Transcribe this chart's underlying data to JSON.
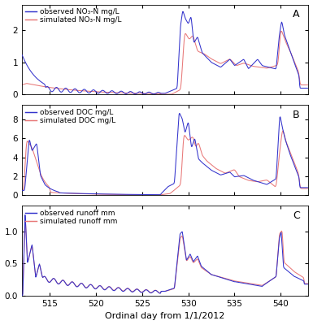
{
  "xlim": [
    512,
    543
  ],
  "panel_A": {
    "ylim": [
      0,
      2.8
    ],
    "yticks": [
      0,
      1,
      2
    ],
    "label": "A",
    "obs_legend": "observed NO₃-N mg/L",
    "sim_legend": "simulated NO₃-N mg/L"
  },
  "panel_B": {
    "ylim": [
      0,
      9.5
    ],
    "yticks": [
      0,
      2,
      4,
      6,
      8
    ],
    "label": "B",
    "obs_legend": "observed DOC mg/L",
    "sim_legend": "simulated DOC mg/L"
  },
  "panel_C": {
    "ylim": [
      0,
      1.4
    ],
    "yticks": [
      0,
      0.5,
      1
    ],
    "label": "C",
    "obs_legend": "observed runoff mm",
    "sim_legend": "simulated runoff mm"
  },
  "xlabel": "Ordinal day from 1/1/2012",
  "xticks": [
    515,
    520,
    525,
    530,
    535,
    540
  ],
  "obs_color": "#3333cc",
  "sim_color": "#e87878",
  "linewidth": 0.75,
  "bg_color": "#ffffff",
  "legend_fontsize": 6.5,
  "label_fontsize": 8,
  "tick_fontsize": 7.5
}
